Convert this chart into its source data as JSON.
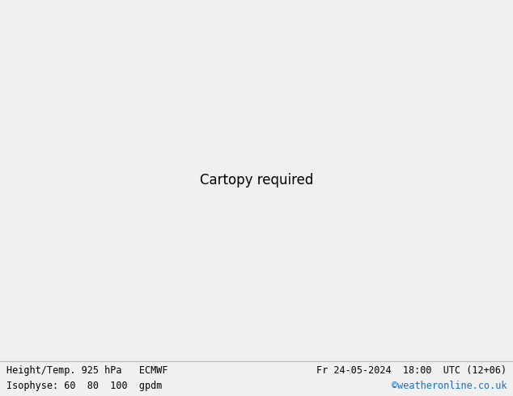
{
  "title_left": "Height/Temp. 925 hPa   ECMWF",
  "title_right": "Fr 24-05-2024  18:00  UTC (12+06)",
  "legend_left": "Isophyse: 60  80  100  gpdm",
  "watermark": "©weatheronline.co.uk",
  "sea_color": "#c8edc8",
  "land_color": "#d0d0d0",
  "border_color": "#aaaaaa",
  "bottom_bar_color": "#f0f0f0",
  "bottom_text_color": "#000000",
  "watermark_color": "#1a6fba",
  "line_colors": [
    "#ff7700",
    "#ff0000",
    "#cc00cc",
    "#0000ff",
    "#00aaff",
    "#00cc00",
    "#888888"
  ],
  "figsize": [
    6.34,
    4.9
  ],
  "dpi": 100,
  "extent": [
    -30,
    40,
    35,
    72
  ]
}
